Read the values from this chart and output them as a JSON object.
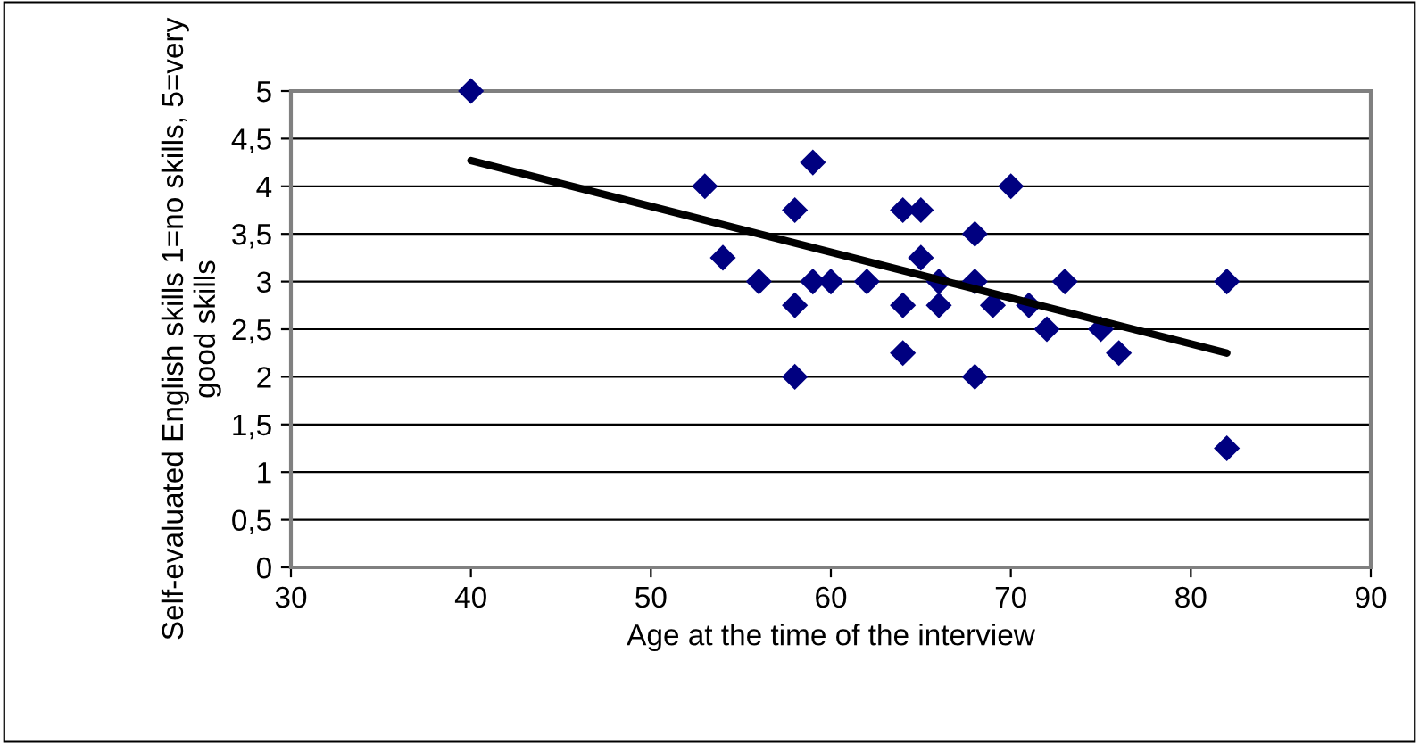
{
  "chart_data": {
    "type": "scatter",
    "xlabel": "Age at the time of the interview",
    "ylabel": "Self-evaluated English skills 1=no skills, 5=very good skills",
    "xlim": [
      30,
      90
    ],
    "xticks": [
      30,
      40,
      50,
      60,
      70,
      80,
      90
    ],
    "ylim": [
      0,
      5
    ],
    "yticks": [
      0,
      {
        "value": 0.5,
        "label": "0,5"
      },
      1,
      {
        "value": 1.5,
        "label": "1,5"
      },
      2,
      {
        "value": 2.5,
        "label": "2,5"
      },
      3,
      {
        "value": 3.5,
        "label": "3,5"
      },
      4,
      {
        "value": 4.5,
        "label": "4,5"
      },
      5
    ],
    "grid": "y",
    "legend": false,
    "series": [
      {
        "marker": "diamond",
        "color": "#000080",
        "x": [
          40,
          53,
          54,
          56,
          58,
          58,
          58,
          59,
          59,
          60,
          62,
          64,
          64,
          64,
          65,
          65,
          66,
          66,
          68,
          68,
          68,
          69,
          70,
          71,
          72,
          73,
          75,
          76,
          82,
          82
        ],
        "values": [
          5,
          4,
          3.25,
          3,
          3.75,
          2.75,
          2,
          4.25,
          3,
          3,
          3,
          3.75,
          2.75,
          2.25,
          3.75,
          3.25,
          3,
          2.75,
          3.5,
          3,
          2,
          2.75,
          4,
          2.75,
          2.5,
          3,
          2.5,
          2.25,
          3,
          1.25
        ]
      },
      {
        "type": "line",
        "color": "#000000",
        "x": [
          40,
          82
        ],
        "values": [
          4.27,
          2.25
        ]
      }
    ]
  }
}
